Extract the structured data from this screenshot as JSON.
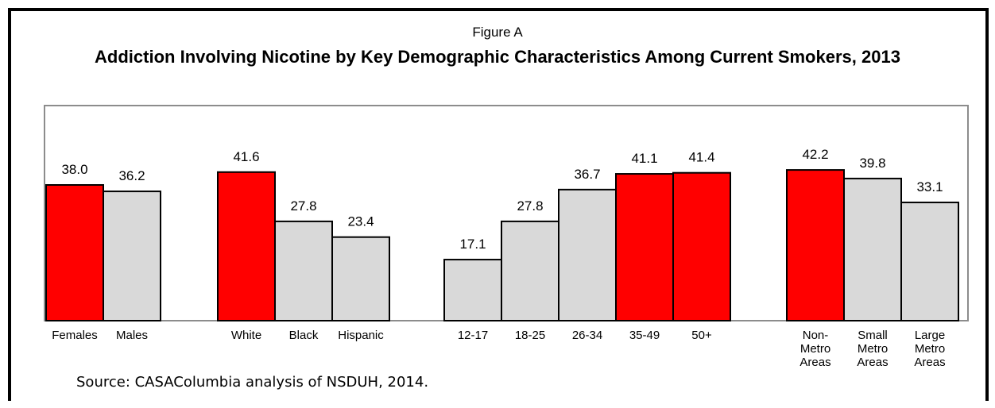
{
  "chart_data": {
    "type": "bar",
    "figure_label": "Figure A",
    "title": "Addiction Involving Nicotine by Key Demographic Characteristics Among Current Smokers, 2013",
    "source": "Source:  CASAColumbia analysis of NSDUH, 2014.",
    "ylim": [
      0,
      50
    ],
    "grid": false,
    "colors": {
      "highlight": "#ff0000",
      "default": "#d9d9d9",
      "outline": "#000000"
    },
    "groups": [
      {
        "categories": [
          "Females",
          "Males"
        ],
        "values": [
          38.0,
          36.2
        ],
        "highlight": [
          true,
          false
        ]
      },
      {
        "categories": [
          "White",
          "Black",
          "Hispanic"
        ],
        "values": [
          41.6,
          27.8,
          23.4
        ],
        "highlight": [
          true,
          false,
          false
        ]
      },
      {
        "categories": [
          "12-17",
          "18-25",
          "26-34",
          "35-49",
          "50+"
        ],
        "values": [
          17.1,
          27.8,
          36.7,
          41.1,
          41.4
        ],
        "highlight": [
          false,
          false,
          false,
          true,
          true
        ]
      },
      {
        "categories": [
          "Non-Metro Areas",
          "Small Metro Areas",
          "Large Metro Areas"
        ],
        "values": [
          42.2,
          39.8,
          33.1
        ],
        "highlight": [
          true,
          false,
          false
        ]
      }
    ],
    "category_lines": {
      "Non-Metro Areas": [
        "Non-",
        "Metro",
        "Areas"
      ],
      "Small Metro Areas": [
        "Small",
        "Metro",
        "Areas"
      ],
      "Large Metro Areas": [
        "Large",
        "Metro",
        "Areas"
      ]
    }
  }
}
